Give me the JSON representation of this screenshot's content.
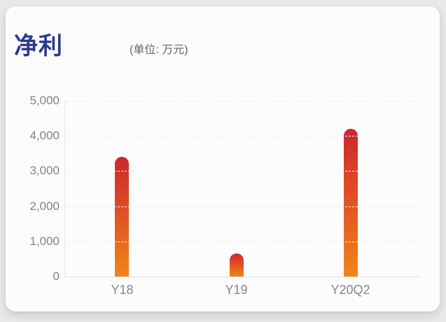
{
  "header": {
    "title": "净利",
    "unit_label": "(单位: 万元)"
  },
  "colors": {
    "page_background": "#e9e9ec",
    "card_background": "#fcfcfd",
    "title_color": "#2b3a8c",
    "unit_color": "#5d6572",
    "axis_label_color": "#7d838c",
    "gridline_color": "#ebecf0",
    "bar_gradient_top": "#c9282d",
    "bar_gradient_mid": "#dd4526",
    "bar_gradient_bottom": "#f08519"
  },
  "chart_data": {
    "type": "bar",
    "title": "净利",
    "subtitle": "(单位: 万元)",
    "ylabel": "万元",
    "xlabel": "",
    "categories": [
      "Y18",
      "Y19",
      "Y20Q2"
    ],
    "values": [
      3400,
      650,
      4200
    ],
    "ylim": [
      0,
      5000
    ],
    "y_tick_values": [
      5000,
      4000,
      3000,
      2000,
      1000,
      0
    ],
    "y_tick_labels": [
      "5,000",
      "4,000",
      "3,000",
      "2,000",
      "1,000",
      "0"
    ],
    "grid": true,
    "gridline_style": "dashed",
    "legend": false
  }
}
